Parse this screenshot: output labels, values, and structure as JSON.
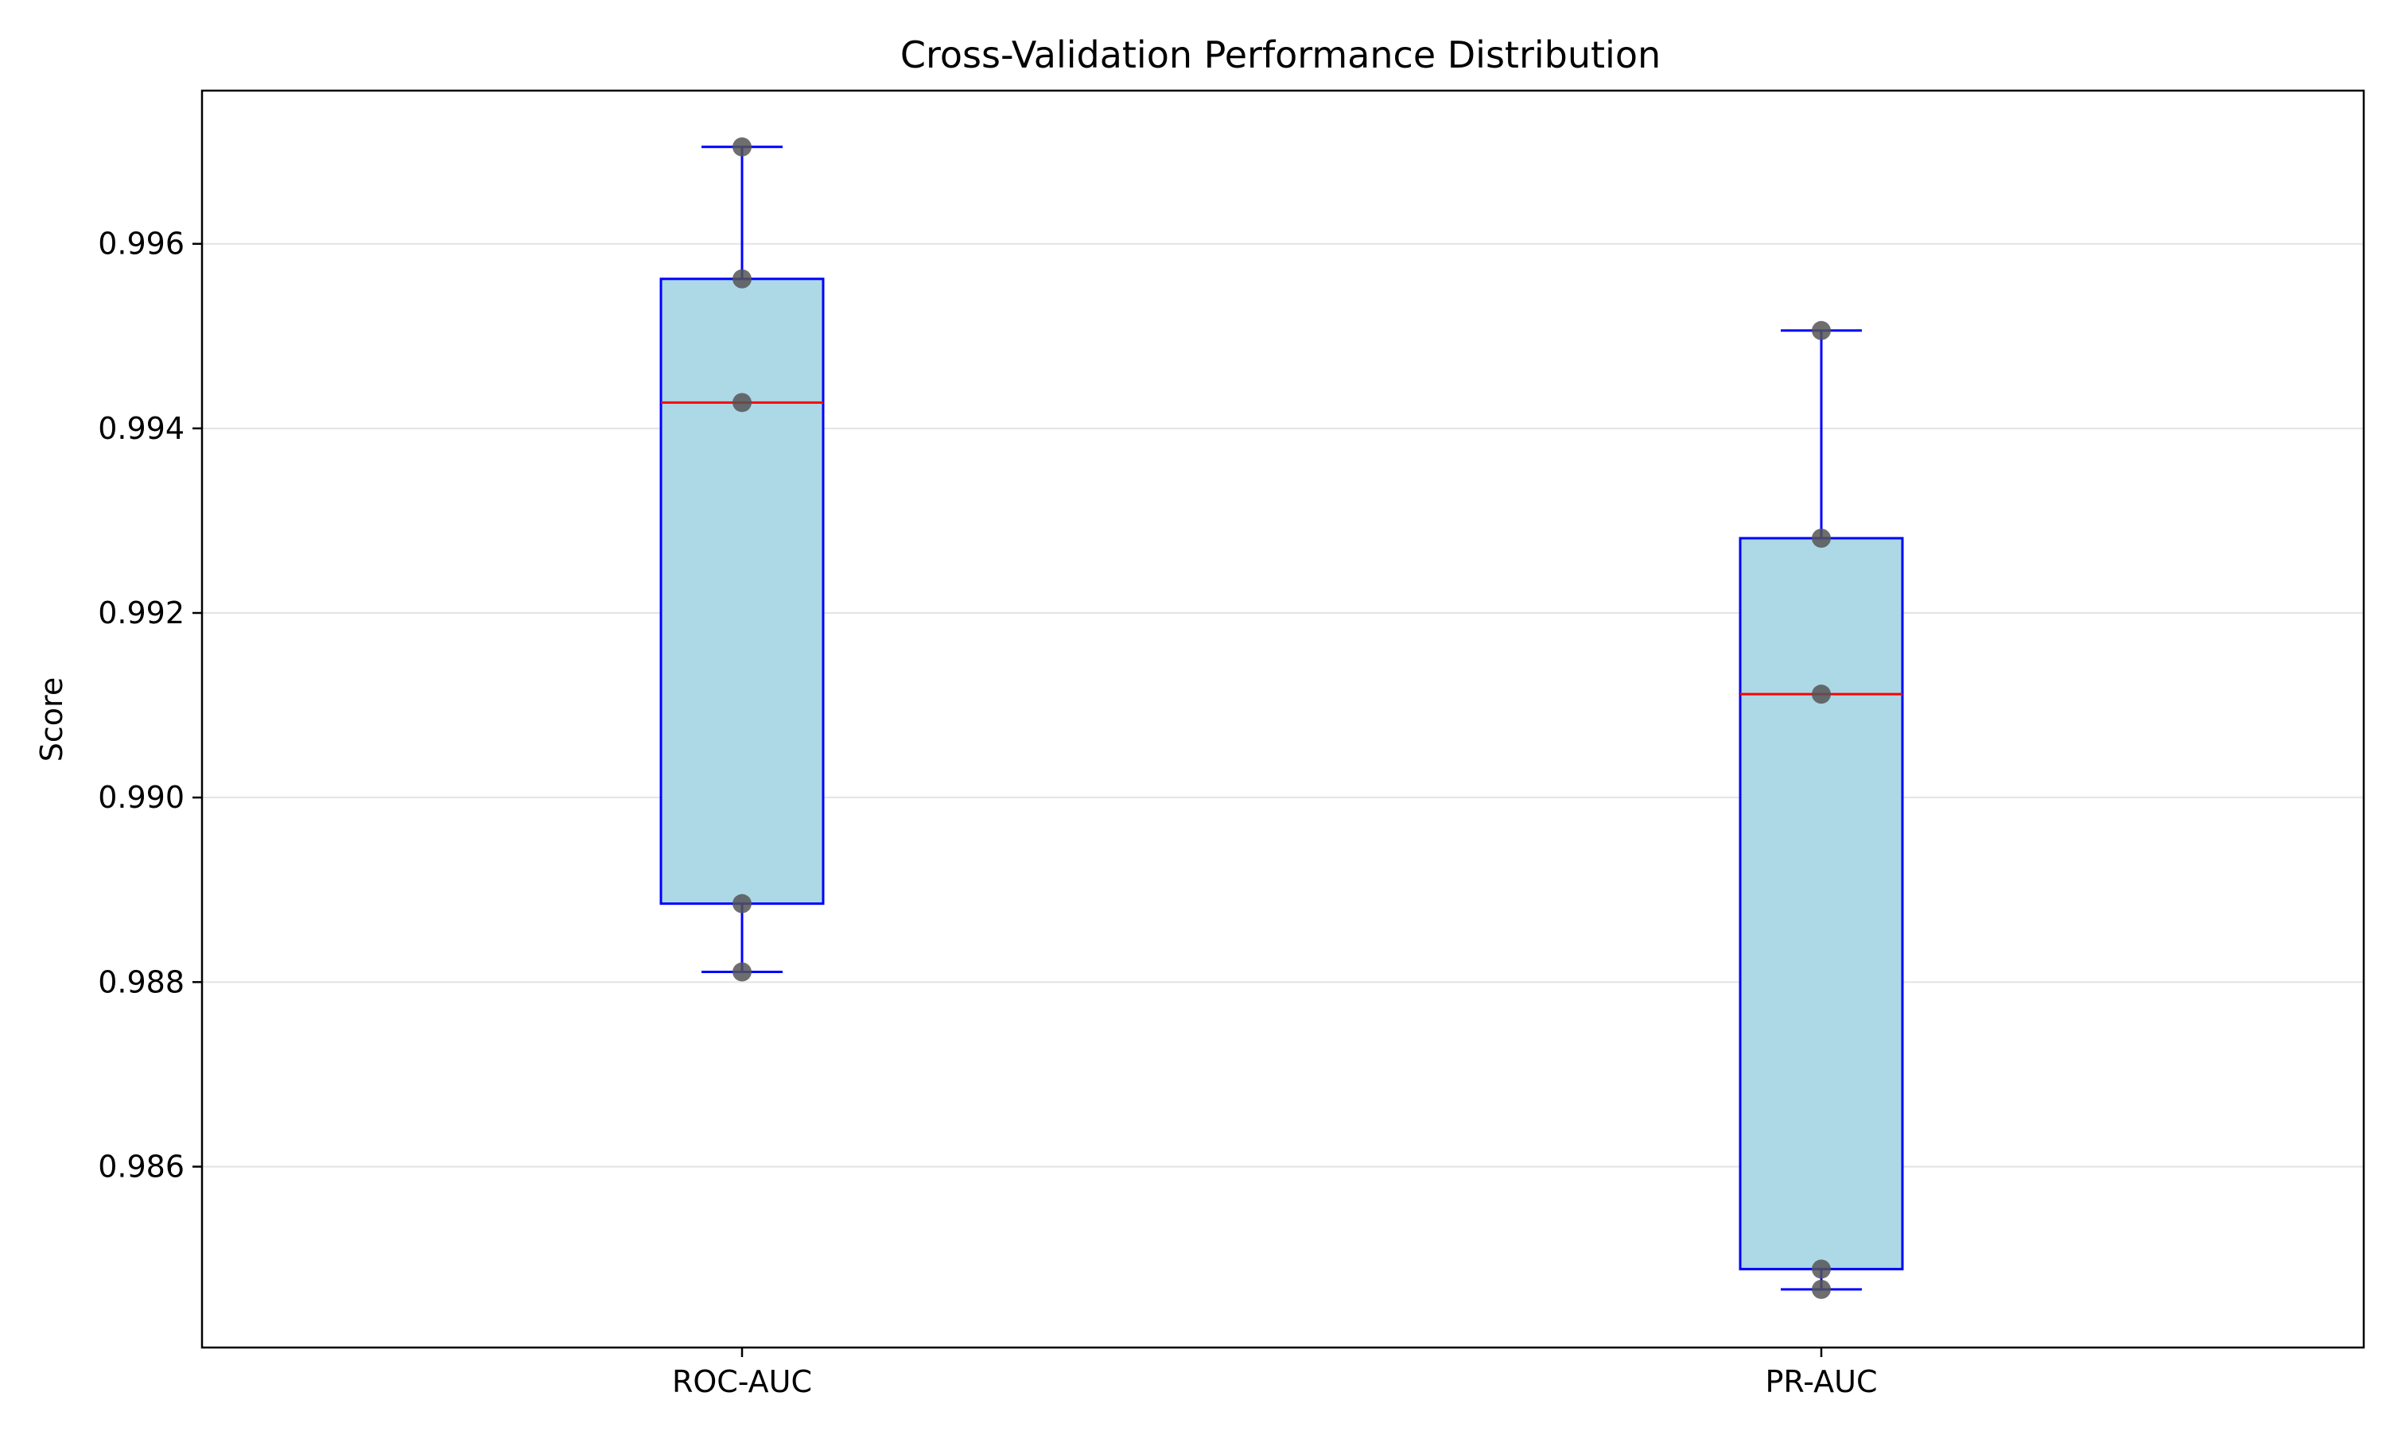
{
  "chart_data": {
    "type": "box",
    "title": "Cross-Validation Performance Distribution",
    "ylabel": "Score",
    "xlabel": "",
    "ylim": [
      0.98404,
      0.99766
    ],
    "yticks": [
      0.986,
      0.988,
      0.99,
      0.992,
      0.994,
      0.996
    ],
    "ytick_labels": [
      "0.986",
      "0.988",
      "0.990",
      "0.992",
      "0.994",
      "0.996"
    ],
    "grid": "y",
    "categories": [
      "ROC-AUC",
      "PR-AUC"
    ],
    "boxes": [
      {
        "name": "ROC-AUC",
        "whisker_low": 0.98811,
        "q1": 0.98885,
        "median": 0.99428,
        "q3": 0.99562,
        "whisker_high": 0.99705,
        "points": [
          0.99705,
          0.99562,
          0.99428,
          0.98885,
          0.98811
        ]
      },
      {
        "name": "PR-AUC",
        "whisker_low": 0.98467,
        "q1": 0.98489,
        "median": 0.99112,
        "q3": 0.99281,
        "whisker_high": 0.99506,
        "points": [
          0.99506,
          0.99281,
          0.99112,
          0.98489,
          0.98467
        ]
      }
    ],
    "colors": {
      "box_fill": "#add8e6",
      "box_edge": "#0000ff",
      "median": "#ff0000",
      "points": "#555555"
    }
  }
}
